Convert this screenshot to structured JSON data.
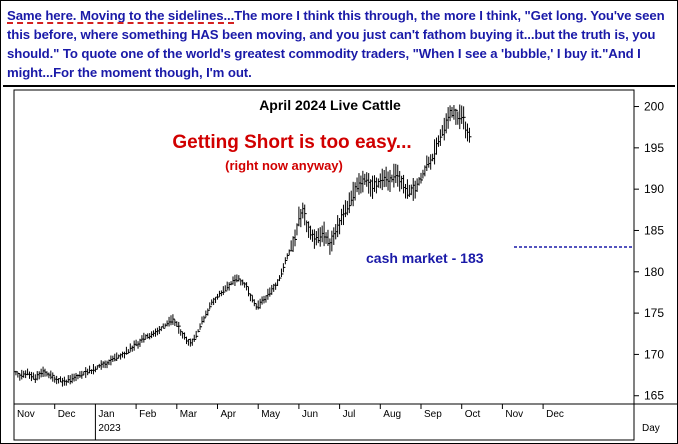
{
  "commentary": {
    "lead": "Same here. Moving to the sidelines...",
    "body": "The more I think this through, the more I think, \"Get long. You've seen this before, where something HAS been moving, and you just can't fathom buying it...but the truth is, you should.\" To quote one of the world's greatest commodity traders, \"When I see a 'bubble,' I buy it.\"And I might...For the moment though, I'm out."
  },
  "colors": {
    "commentary_text": "#1a1aa8",
    "headline": "#d10000",
    "price_bars": "#000000",
    "cash_line": "#1a1aa8"
  },
  "chart_data": {
    "type": "ohlc",
    "title": "April 2024 Live Cattle",
    "annotations": {
      "headline": "Getting Short is too easy...",
      "subline": "(right now anyway)",
      "cash_label": "cash market - 183",
      "cash_value": 183
    },
    "y_axis": {
      "ticks": [
        165,
        170,
        175,
        180,
        185,
        190,
        195,
        200
      ],
      "range": [
        164,
        202
      ],
      "side": "right"
    },
    "x_axis": {
      "months": [
        "Nov",
        "Dec",
        "Jan",
        "Feb",
        "Mar",
        "Apr",
        "May",
        "Jun",
        "Jul",
        "Aug",
        "Sep",
        "Oct",
        "Nov",
        "Dec"
      ],
      "year_label": "2023",
      "year_under": "Jan",
      "corner_label": "Day"
    },
    "grid": false,
    "price_path": [
      [
        0,
        168.0
      ],
      [
        0.15,
        167.3
      ],
      [
        0.3,
        167.8
      ],
      [
        0.5,
        167.1
      ],
      [
        0.7,
        167.9
      ],
      [
        0.9,
        167.4
      ],
      [
        1.1,
        166.9
      ],
      [
        1.3,
        166.7
      ],
      [
        1.5,
        167.2
      ],
      [
        1.7,
        167.7
      ],
      [
        1.9,
        168.0
      ],
      [
        2.1,
        168.6
      ],
      [
        2.3,
        169.0
      ],
      [
        2.5,
        169.6
      ],
      [
        2.7,
        170.0
      ],
      [
        2.9,
        170.8
      ],
      [
        3.1,
        171.6
      ],
      [
        3.3,
        172.3
      ],
      [
        3.5,
        172.6
      ],
      [
        3.7,
        173.5
      ],
      [
        3.9,
        174.2
      ],
      [
        4.05,
        173.2
      ],
      [
        4.2,
        172.0
      ],
      [
        4.35,
        171.4
      ],
      [
        4.5,
        172.6
      ],
      [
        4.7,
        174.8
      ],
      [
        4.9,
        176.5
      ],
      [
        5.1,
        177.4
      ],
      [
        5.3,
        178.5
      ],
      [
        5.5,
        179.2
      ],
      [
        5.7,
        178.2
      ],
      [
        5.85,
        176.6
      ],
      [
        5.95,
        175.6
      ],
      [
        6.1,
        176.4
      ],
      [
        6.3,
        177.6
      ],
      [
        6.5,
        179.0
      ],
      [
        6.7,
        181.6
      ],
      [
        6.9,
        184.2
      ],
      [
        7.0,
        186.4
      ],
      [
        7.1,
        187.6
      ],
      [
        7.2,
        185.6
      ],
      [
        7.3,
        184.8
      ],
      [
        7.45,
        184.0
      ],
      [
        7.6,
        184.8
      ],
      [
        7.75,
        183.4
      ],
      [
        7.9,
        184.6
      ],
      [
        8.05,
        186.6
      ],
      [
        8.2,
        188.0
      ],
      [
        8.35,
        189.6
      ],
      [
        8.5,
        190.8
      ],
      [
        8.65,
        191.4
      ],
      [
        8.8,
        190.2
      ],
      [
        8.95,
        190.8
      ],
      [
        9.1,
        191.6
      ],
      [
        9.25,
        191.0
      ],
      [
        9.4,
        192.0
      ],
      [
        9.55,
        190.6
      ],
      [
        9.7,
        189.4
      ],
      [
        9.85,
        190.2
      ],
      [
        10.0,
        191.2
      ],
      [
        10.15,
        192.8
      ],
      [
        10.3,
        194.0
      ],
      [
        10.45,
        196.2
      ],
      [
        10.6,
        197.8
      ],
      [
        10.72,
        199.2
      ],
      [
        10.82,
        199.5
      ],
      [
        10.92,
        198.6
      ],
      [
        11.02,
        198.9
      ],
      [
        11.12,
        197.2
      ],
      [
        11.2,
        196.0
      ]
    ]
  }
}
